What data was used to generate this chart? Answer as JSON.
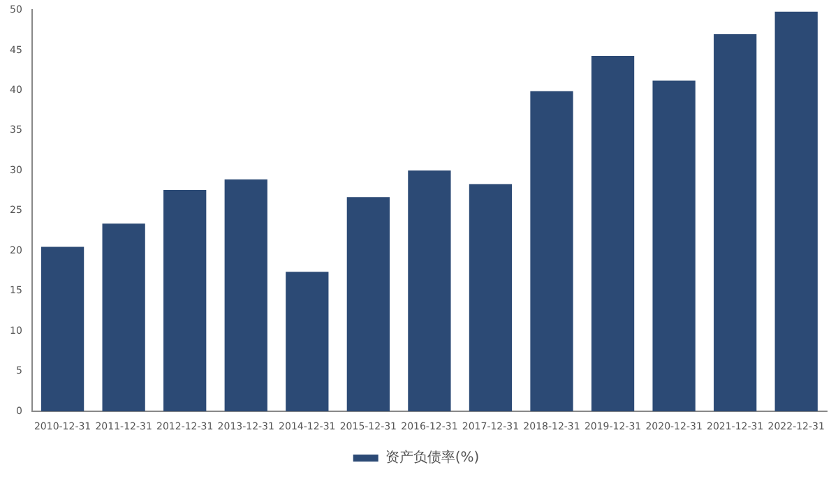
{
  "chart_data": {
    "type": "bar",
    "categories": [
      "2010-12-31",
      "2011-12-31",
      "2012-12-31",
      "2013-12-31",
      "2014-12-31",
      "2015-12-31",
      "2016-12-31",
      "2017-12-31",
      "2018-12-31",
      "2019-12-31",
      "2020-12-31",
      "2021-12-31",
      "2022-12-31"
    ],
    "series": [
      {
        "name": "资产负债率(%)",
        "color": "#2c4a75",
        "values": [
          20.5,
          23.4,
          27.6,
          28.9,
          17.4,
          26.7,
          30.0,
          28.3,
          39.9,
          44.3,
          41.2,
          47.0,
          49.8
        ]
      }
    ],
    "ylim": [
      0,
      50
    ],
    "yticks": [
      0,
      5,
      10,
      15,
      20,
      25,
      30,
      35,
      40,
      45,
      50
    ],
    "grid": false,
    "legend": "bottom"
  }
}
